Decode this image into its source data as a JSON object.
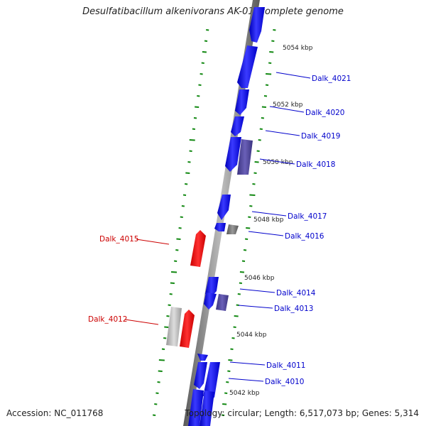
{
  "title": "Desulfatibacillum alkenivorans AK-01, complete genome",
  "footer": {
    "accession": "Accession: NC_011768",
    "summary": "Topology: circular; Length: 6,517,073 bp; Genes: 5,314"
  },
  "colors": {
    "forward_gene": "#0000ee",
    "forward_gene_highlight": "#7070ff",
    "other_gene": "#4a3f9a",
    "reverse_gene": "#ee0000",
    "grey_gene": "#777777",
    "light_grey_gene": "#bbbbbb",
    "backbone": "#808080",
    "gc_ticks": "#118811",
    "label_blue": "#0000cc",
    "label_red": "#cc0000"
  },
  "scale_labels": [
    "5054 kbp",
    "5052 kbp",
    "5050 kbp",
    "5048 kbp",
    "5046 kbp",
    "5044 kbp",
    "5042 kbp"
  ],
  "gene_labels": [
    {
      "text": "Dalk_4021",
      "strand": "forward"
    },
    {
      "text": "Dalk_4020",
      "strand": "forward"
    },
    {
      "text": "Dalk_4019",
      "strand": "forward"
    },
    {
      "text": "Dalk_4018",
      "strand": "forward"
    },
    {
      "text": "Dalk_4017",
      "strand": "forward"
    },
    {
      "text": "Dalk_4016",
      "strand": "forward"
    },
    {
      "text": "Dalk_4015",
      "strand": "reverse"
    },
    {
      "text": "Dalk_4014",
      "strand": "forward"
    },
    {
      "text": "Dalk_4013",
      "strand": "forward"
    },
    {
      "text": "Dalk_4012",
      "strand": "reverse"
    },
    {
      "text": "Dalk_4011",
      "strand": "forward"
    },
    {
      "text": "Dalk_4010",
      "strand": "forward"
    }
  ]
}
